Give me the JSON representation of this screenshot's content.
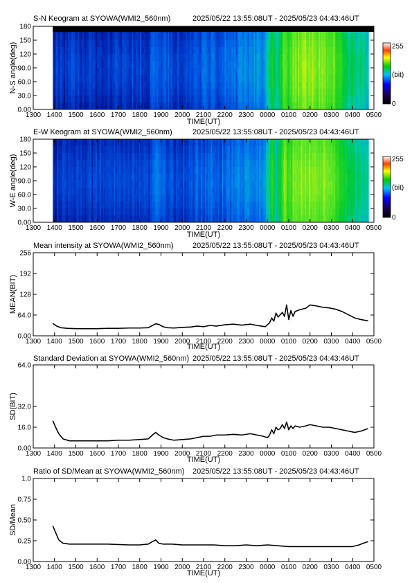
{
  "date_range": "2025/05/22 13:55:08UT - 2025/05/23 04:43:46UT",
  "colors": {
    "line": "#000000",
    "mask": "#000000",
    "background": "#ffffff"
  },
  "x_ticks": [
    "1300",
    "1400",
    "1500",
    "1600",
    "1700",
    "1800",
    "1900",
    "2000",
    "2100",
    "2200",
    "2300",
    "0000",
    "0100",
    "0200",
    "0300",
    "0400",
    "0500"
  ],
  "chart_data": [
    {
      "type": "heatmap",
      "title": "S-N Keogram at SYOWA(WMI2_560nm)",
      "xlabel": "TIME(UT)",
      "ylabel": "N-S angle(deg)",
      "yticks": [
        "0.00",
        "30.0",
        "60.0",
        "90.0",
        "120",
        "150",
        "180"
      ],
      "ylim": [
        0,
        180
      ],
      "colorbar": {
        "min": "0",
        "mid": "(bit)",
        "max": "255"
      },
      "masked_top_deg": 168,
      "data_start_hour": 13.92,
      "data_end_hour": 28.73,
      "profile": [
        {
          "h": 13.92,
          "v": 0.1
        },
        {
          "h": 14.5,
          "v": 0.11
        },
        {
          "h": 15.5,
          "v": 0.11
        },
        {
          "h": 17.5,
          "v": 0.12
        },
        {
          "h": 18.5,
          "v": 0.13
        },
        {
          "h": 18.65,
          "v": 0.22
        },
        {
          "h": 18.9,
          "v": 0.18
        },
        {
          "h": 19.5,
          "v": 0.14
        },
        {
          "h": 20.5,
          "v": 0.16
        },
        {
          "h": 21.0,
          "v": 0.2
        },
        {
          "h": 21.7,
          "v": 0.18
        },
        {
          "h": 22.5,
          "v": 0.22
        },
        {
          "h": 23.5,
          "v": 0.25
        },
        {
          "h": 23.85,
          "v": 0.3
        },
        {
          "h": 24.0,
          "v": 0.38
        },
        {
          "h": 24.2,
          "v": 0.55
        },
        {
          "h": 24.4,
          "v": 0.4
        },
        {
          "h": 24.6,
          "v": 0.52
        },
        {
          "h": 24.8,
          "v": 0.72
        },
        {
          "h": 24.95,
          "v": 0.55
        },
        {
          "h": 25.2,
          "v": 0.68
        },
        {
          "h": 25.6,
          "v": 0.72
        },
        {
          "h": 26.0,
          "v": 0.73
        },
        {
          "h": 26.6,
          "v": 0.7
        },
        {
          "h": 27.0,
          "v": 0.66
        },
        {
          "h": 27.5,
          "v": 0.55
        },
        {
          "h": 27.8,
          "v": 0.45
        },
        {
          "h": 28.3,
          "v": 0.42
        },
        {
          "h": 28.73,
          "v": 0.4
        }
      ]
    },
    {
      "type": "heatmap",
      "title": "E-W Keogram at SYOWA(WMI2_560nm)",
      "xlabel": "TIME(UT)",
      "ylabel": "W-E angle(deg)",
      "yticks": [
        "0.00",
        "30.0",
        "60.0",
        "90.0",
        "120",
        "150",
        "180"
      ],
      "ylim": [
        0,
        180
      ],
      "colorbar": {
        "min": "0",
        "mid": "(bit)",
        "max": "255"
      },
      "masked_top_deg": 0,
      "data_start_hour": 13.92,
      "data_end_hour": 28.73,
      "profile": [
        {
          "h": 13.92,
          "v": 0.1
        },
        {
          "h": 14.5,
          "v": 0.11
        },
        {
          "h": 15.5,
          "v": 0.11
        },
        {
          "h": 17.5,
          "v": 0.12
        },
        {
          "h": 18.5,
          "v": 0.13
        },
        {
          "h": 18.65,
          "v": 0.22
        },
        {
          "h": 18.9,
          "v": 0.18
        },
        {
          "h": 19.5,
          "v": 0.14
        },
        {
          "h": 20.5,
          "v": 0.16
        },
        {
          "h": 21.0,
          "v": 0.2
        },
        {
          "h": 21.7,
          "v": 0.18
        },
        {
          "h": 22.5,
          "v": 0.22
        },
        {
          "h": 23.5,
          "v": 0.25
        },
        {
          "h": 23.85,
          "v": 0.3
        },
        {
          "h": 24.0,
          "v": 0.38
        },
        {
          "h": 24.2,
          "v": 0.55
        },
        {
          "h": 24.4,
          "v": 0.4
        },
        {
          "h": 24.6,
          "v": 0.52
        },
        {
          "h": 24.8,
          "v": 0.72
        },
        {
          "h": 24.95,
          "v": 0.55
        },
        {
          "h": 25.2,
          "v": 0.68
        },
        {
          "h": 25.6,
          "v": 0.72
        },
        {
          "h": 26.0,
          "v": 0.73
        },
        {
          "h": 26.6,
          "v": 0.7
        },
        {
          "h": 27.0,
          "v": 0.66
        },
        {
          "h": 27.5,
          "v": 0.55
        },
        {
          "h": 27.8,
          "v": 0.45
        },
        {
          "h": 28.3,
          "v": 0.42
        },
        {
          "h": 28.73,
          "v": 0.4
        }
      ]
    },
    {
      "type": "line",
      "title": "Mean intensity at SYOWA(WMI2_560nm)",
      "xlabel": "TIME(UT)",
      "ylabel": "MEAN(BIT)",
      "yticks": [
        "0.00",
        "64.0",
        "128",
        "192",
        "256"
      ],
      "ylim": [
        0,
        256
      ],
      "x": [
        13.92,
        14.1,
        14.3,
        14.6,
        15.0,
        15.5,
        16.0,
        16.5,
        17.0,
        17.5,
        18.0,
        18.4,
        18.6,
        18.75,
        18.9,
        19.1,
        19.3,
        19.6,
        20.0,
        20.4,
        20.7,
        21.0,
        21.3,
        21.6,
        22.0,
        22.4,
        22.8,
        23.2,
        23.5,
        23.7,
        23.9,
        24.0,
        24.1,
        24.2,
        24.3,
        24.4,
        24.5,
        24.6,
        24.7,
        24.8,
        24.9,
        25.0,
        25.1,
        25.2,
        25.3,
        25.5,
        25.8,
        26.0,
        26.3,
        26.6,
        26.9,
        27.2,
        27.5,
        27.8,
        28.1,
        28.4,
        28.73
      ],
      "y": [
        38,
        30,
        25,
        23,
        22,
        22,
        22,
        23,
        23,
        24,
        24,
        25,
        32,
        37,
        35,
        28,
        25,
        24,
        26,
        27,
        30,
        28,
        32,
        30,
        34,
        36,
        33,
        36,
        32,
        30,
        28,
        34,
        40,
        55,
        45,
        70,
        58,
        65,
        72,
        60,
        95,
        50,
        78,
        60,
        75,
        80,
        85,
        95,
        92,
        88,
        86,
        82,
        75,
        65,
        55,
        50,
        46
      ]
    },
    {
      "type": "line",
      "title": "Standard Deviation at SYOWA(WMI2_560nm)",
      "xlabel": "TIME(UT)",
      "ylabel": "SD(BIT)",
      "yticks": [
        "0.00",
        "16.0",
        "32.0",
        "64.0"
      ],
      "ylim": [
        0,
        64
      ],
      "x": [
        13.92,
        14.05,
        14.2,
        14.4,
        14.7,
        15.0,
        15.5,
        16.0,
        16.5,
        17.0,
        17.5,
        18.0,
        18.4,
        18.6,
        18.75,
        18.9,
        19.1,
        19.3,
        19.6,
        20.0,
        20.4,
        20.7,
        21.0,
        21.3,
        21.6,
        22.0,
        22.4,
        22.8,
        23.2,
        23.5,
        23.8,
        24.0,
        24.1,
        24.2,
        24.3,
        24.4,
        24.5,
        24.6,
        24.7,
        24.8,
        24.9,
        25.0,
        25.1,
        25.2,
        25.3,
        25.5,
        25.8,
        26.0,
        26.3,
        26.6,
        26.9,
        27.2,
        27.5,
        27.8,
        28.1,
        28.4,
        28.73
      ],
      "y": [
        21,
        16,
        11,
        7,
        5.5,
        5.5,
        5.5,
        5.5,
        5.5,
        6,
        6,
        6.5,
        7,
        10,
        12,
        10,
        8,
        7,
        6,
        6.5,
        7,
        8,
        9,
        9,
        10,
        10,
        10.5,
        10,
        11,
        10,
        9,
        8,
        10,
        14,
        11,
        16,
        14,
        15,
        18,
        15,
        20,
        14,
        17,
        15,
        17,
        16,
        17,
        18,
        17,
        16,
        16,
        15,
        14,
        13,
        12,
        13,
        15
      ]
    },
    {
      "type": "line",
      "title": "Ratio of SD/Mean at SYOWA(WMI2_560nm)",
      "xlabel": "TIME(UT)",
      "ylabel": "SD/Mean",
      "yticks": [
        "0.00",
        "0.25",
        "0.50",
        "0.75",
        "1.0"
      ],
      "ylim": [
        0,
        1.0
      ],
      "x": [
        13.92,
        14.05,
        14.2,
        14.4,
        14.7,
        15.0,
        15.5,
        16.0,
        16.5,
        17.0,
        17.5,
        18.0,
        18.4,
        18.6,
        18.75,
        18.9,
        19.1,
        19.5,
        20.0,
        20.5,
        21.0,
        21.5,
        22.0,
        22.5,
        23.0,
        23.5,
        24.0,
        24.5,
        25.0,
        25.5,
        26.0,
        26.5,
        27.0,
        27.5,
        28.0,
        28.3,
        28.5,
        28.73
      ],
      "y": [
        0.43,
        0.35,
        0.26,
        0.22,
        0.21,
        0.21,
        0.21,
        0.21,
        0.21,
        0.205,
        0.2,
        0.2,
        0.21,
        0.24,
        0.26,
        0.22,
        0.21,
        0.21,
        0.2,
        0.2,
        0.2,
        0.2,
        0.19,
        0.19,
        0.2,
        0.19,
        0.2,
        0.19,
        0.18,
        0.18,
        0.18,
        0.18,
        0.18,
        0.18,
        0.18,
        0.2,
        0.22,
        0.24
      ]
    }
  ]
}
